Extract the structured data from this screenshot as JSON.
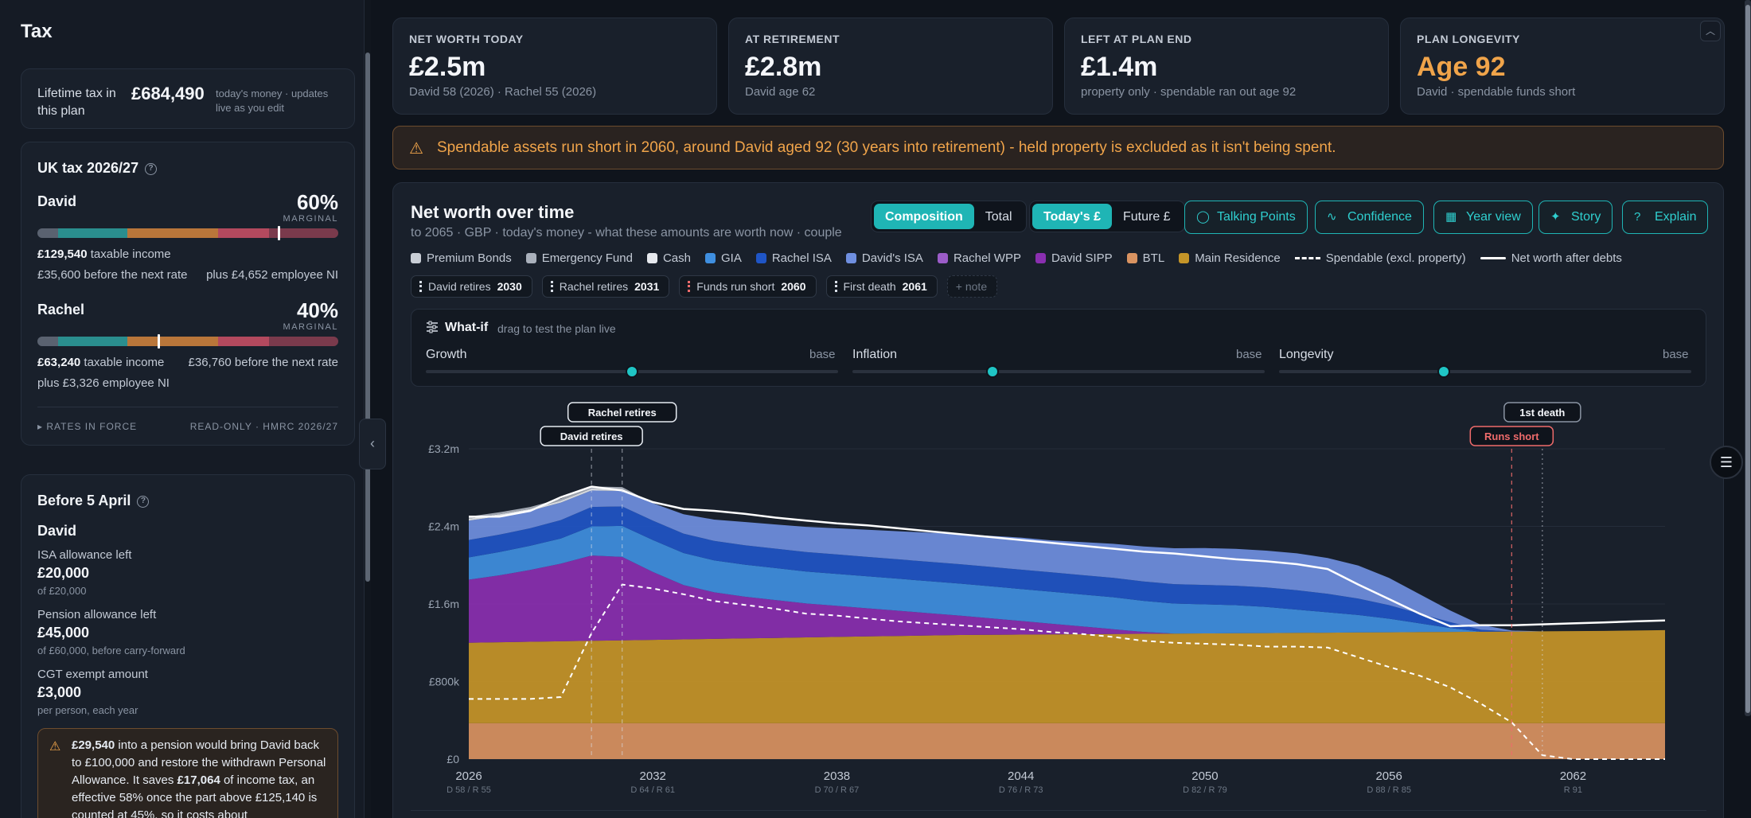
{
  "sidebar": {
    "title": "Tax",
    "lifetime": {
      "label": "Lifetime tax in this plan",
      "value": "£684,490",
      "note": "today's money · updates live as you edit"
    },
    "uk_tax": {
      "title": "UK tax 2026/27",
      "people": [
        {
          "name": "David",
          "marginal": "60%",
          "marginal_label": "MARGINAL",
          "marker_fraction": 0.8,
          "line1_value": "£129,540",
          "line1_text": " taxable income",
          "line2_left": "£35,600 before the next rate",
          "line2_right": "plus £4,652 employee NI"
        },
        {
          "name": "Rachel",
          "marginal": "40%",
          "marginal_label": "MARGINAL",
          "marker_fraction": 0.4,
          "line1_value": "£63,240",
          "line1_text": " taxable income",
          "line1_right": "£36,760 before the next rate",
          "line2_left": "plus £3,326 employee NI"
        }
      ],
      "footer_left": "▸ RATES IN FORCE",
      "footer_right": "READ-ONLY · HMRC 2026/27"
    },
    "before_april": {
      "title": "Before 5 April",
      "person": "David",
      "items": [
        {
          "label": "ISA allowance left",
          "value": "£20,000",
          "sub": "of £20,000"
        },
        {
          "label": "Pension allowance left",
          "value": "£45,000",
          "sub": "of £60,000, before carry-forward"
        },
        {
          "label": "CGT exempt amount",
          "value": "£3,000",
          "sub": "per person, each year"
        }
      ],
      "warning": {
        "b1": "£29,540",
        "t1": " into a pension would bring David back to £100,000 and restore the withdrawn Personal Allowance. It saves ",
        "b2": "£17,064",
        "t2": " of income tax, an effective 58% once the part above £125,140 is counted at 45%, so it costs about"
      }
    }
  },
  "kpis": [
    {
      "label": "NET WORTH TODAY",
      "value": "£2.5m",
      "sub": "David 58 (2026) · Rachel 55 (2026)"
    },
    {
      "label": "AT RETIREMENT",
      "value": "£2.8m",
      "sub": "David age 62"
    },
    {
      "label": "LEFT AT PLAN END",
      "value": "£1.4m",
      "sub": "property only · spendable ran out age 92"
    },
    {
      "label": "PLAN LONGEVITY",
      "value": "Age 92",
      "sub": "David · spendable funds short"
    }
  ],
  "alert": "Spendable assets run short in 2060, around David aged 92 (30 years into retirement) - held property is excluded as it isn't being spent.",
  "panel": {
    "title": "Net worth over time",
    "subtitle": "to 2065 · GBP · today's money - what these amounts are worth now · couple",
    "seg1": [
      "Composition",
      "Total"
    ],
    "seg2": [
      "Today's £",
      "Future £"
    ],
    "buttons": [
      "Talking Points",
      "Confidence",
      "Year view",
      "Story",
      "Explain"
    ],
    "legend": [
      {
        "label": "Premium Bonds",
        "color": "#c9ced6"
      },
      {
        "label": "Emergency Fund",
        "color": "#a9b0bb"
      },
      {
        "label": "Cash",
        "color": "#e6e9ee"
      },
      {
        "label": "GIA",
        "color": "#3f8fe0"
      },
      {
        "label": "Rachel ISA",
        "color": "#1f55c6"
      },
      {
        "label": "David's ISA",
        "color": "#6f8fe0"
      },
      {
        "label": "Rachel WPP",
        "color": "#9b5cc8"
      },
      {
        "label": "David SIPP",
        "color": "#8a2fb0"
      },
      {
        "label": "BTL",
        "color": "#d99361"
      },
      {
        "label": "Main Residence",
        "color": "#c59528"
      }
    ],
    "legend_lines": [
      "Spendable (excl. property)",
      "Net worth after debts"
    ],
    "chips": [
      {
        "label": "David retires",
        "year": "2030"
      },
      {
        "label": "Rachel retires",
        "year": "2031"
      },
      {
        "label": "Funds run short",
        "year": "2060"
      },
      {
        "label": "First death",
        "year": "2061"
      }
    ],
    "add_note": "+ note",
    "whatif": {
      "title": "What-if",
      "hint": "drag to test the plan live",
      "sliders": [
        {
          "label": "Growth",
          "base": "base",
          "value": 0.5
        },
        {
          "label": "Inflation",
          "base": "base",
          "value": 0.34
        },
        {
          "label": "Longevity",
          "base": "base",
          "value": 0.4
        }
      ]
    }
  },
  "chart_data": {
    "type": "area",
    "x": [
      2026,
      2027,
      2028,
      2029,
      2030,
      2031,
      2032,
      2033,
      2034,
      2035,
      2036,
      2037,
      2038,
      2039,
      2040,
      2041,
      2042,
      2043,
      2044,
      2045,
      2046,
      2047,
      2048,
      2049,
      2050,
      2051,
      2052,
      2053,
      2054,
      2055,
      2056,
      2057,
      2058,
      2059,
      2060,
      2061,
      2062,
      2063,
      2064,
      2065
    ],
    "x_ticks": [
      {
        "year": "2026",
        "sub": "D 58 / R 55"
      },
      {
        "year": "2032",
        "sub": "D 64 / R 61"
      },
      {
        "year": "2038",
        "sub": "D 70 / R 67"
      },
      {
        "year": "2044",
        "sub": "D 76 / R 73"
      },
      {
        "year": "2050",
        "sub": "D 82 / R 79"
      },
      {
        "year": "2056",
        "sub": "D 88 / R 85"
      },
      {
        "year": "2062",
        "sub": "R 91"
      }
    ],
    "y_ticks": [
      "£0",
      "£800k",
      "£1.6m",
      "£2.4m",
      "£3.2m"
    ],
    "ylim": [
      0,
      3200000
    ],
    "series": [
      {
        "name": "BTL",
        "color": "#d99361",
        "values": [
          370000,
          370000,
          370000,
          370000,
          370000,
          370000,
          370000,
          370000,
          370000,
          370000,
          370000,
          370000,
          370000,
          370000,
          370000,
          370000,
          370000,
          370000,
          370000,
          370000,
          370000,
          370000,
          370000,
          370000,
          370000,
          370000,
          370000,
          370000,
          370000,
          370000,
          370000,
          370000,
          370000,
          370000,
          370000,
          370000,
          370000,
          370000,
          370000,
          370000
        ]
      },
      {
        "name": "Main Residence",
        "color": "#c59528",
        "values": [
          830000,
          835000,
          840000,
          845000,
          850000,
          855000,
          860000,
          865000,
          870000,
          875000,
          880000,
          885000,
          890000,
          895000,
          900000,
          905000,
          910000,
          912000,
          914000,
          916000,
          918000,
          920000,
          922000,
          924000,
          926000,
          928000,
          930000,
          932000,
          934000,
          936000,
          938000,
          940000,
          942000,
          944000,
          946000,
          948000,
          950000,
          952000,
          956000,
          960000
        ]
      },
      {
        "name": "Rachel WPP",
        "color": "#9b5cc8",
        "values": [
          0,
          0,
          0,
          0,
          0,
          0,
          0,
          0,
          0,
          0,
          0,
          0,
          0,
          0,
          0,
          0,
          0,
          0,
          0,
          0,
          0,
          0,
          0,
          0,
          0,
          0,
          0,
          0,
          0,
          0,
          0,
          0,
          0,
          0,
          0,
          0,
          0,
          0,
          0,
          0
        ]
      },
      {
        "name": "David SIPP",
        "color": "#8a2fb0",
        "values": [
          650000,
          690000,
          740000,
          800000,
          880000,
          860000,
          700000,
          560000,
          480000,
          430000,
          390000,
          350000,
          320000,
          290000,
          260000,
          230000,
          200000,
          170000,
          140000,
          110000,
          80000,
          50000,
          20000,
          0,
          0,
          0,
          0,
          0,
          0,
          0,
          0,
          0,
          0,
          0,
          0,
          0,
          0,
          0,
          0,
          0
        ]
      },
      {
        "name": "GIA",
        "color": "#3f8fe0",
        "values": [
          230000,
          240000,
          250000,
          260000,
          300000,
          320000,
          330000,
          330000,
          330000,
          330000,
          330000,
          330000,
          330000,
          330000,
          330000,
          330000,
          330000,
          330000,
          330000,
          330000,
          330000,
          330000,
          320000,
          310000,
          300000,
          290000,
          270000,
          240000,
          210000,
          180000,
          140000,
          90000,
          40000,
          0,
          0,
          0,
          0,
          0,
          0,
          0
        ]
      },
      {
        "name": "Rachel ISA",
        "color": "#1f55c6",
        "values": [
          180000,
          180000,
          180000,
          190000,
          200000,
          200000,
          200000,
          200000,
          200000,
          200000,
          200000,
          200000,
          200000,
          200000,
          200000,
          200000,
          200000,
          200000,
          200000,
          200000,
          200000,
          200000,
          200000,
          200000,
          200000,
          200000,
          200000,
          200000,
          190000,
          170000,
          140000,
          100000,
          60000,
          20000,
          0,
          0,
          0,
          0,
          0,
          0
        ]
      },
      {
        "name": "David's ISA",
        "color": "#6f8fe0",
        "values": [
          200000,
          190000,
          180000,
          180000,
          170000,
          160000,
          180000,
          200000,
          220000,
          240000,
          250000,
          260000,
          270000,
          280000,
          290000,
          300000,
          310000,
          320000,
          330000,
          330000,
          340000,
          350000,
          360000,
          370000,
          380000,
          380000,
          380000,
          380000,
          370000,
          340000,
          280000,
          200000,
          120000,
          50000,
          10000,
          0,
          0,
          0,
          0,
          0
        ]
      },
      {
        "name": "Cash",
        "color": "#e6e9ee",
        "values": [
          20000,
          20000,
          20000,
          20000,
          20000,
          20000,
          0,
          0,
          0,
          0,
          0,
          0,
          0,
          0,
          0,
          0,
          0,
          0,
          0,
          0,
          0,
          0,
          0,
          0,
          0,
          0,
          0,
          0,
          0,
          0,
          0,
          0,
          0,
          0,
          0,
          0,
          0,
          0,
          0,
          0
        ]
      },
      {
        "name": "Emergency Fund",
        "color": "#a9b0bb",
        "values": [
          20000,
          20000,
          20000,
          20000,
          20000,
          20000,
          0,
          0,
          0,
          0,
          0,
          0,
          0,
          0,
          0,
          0,
          0,
          0,
          0,
          0,
          0,
          0,
          0,
          0,
          0,
          0,
          0,
          0,
          0,
          0,
          0,
          0,
          0,
          0,
          0,
          0,
          0,
          0,
          0,
          0
        ]
      },
      {
        "name": "Premium Bonds",
        "color": "#c9ced6",
        "values": [
          0,
          0,
          0,
          0,
          0,
          0,
          0,
          0,
          0,
          0,
          0,
          0,
          0,
          0,
          0,
          0,
          0,
          0,
          0,
          0,
          0,
          0,
          0,
          0,
          0,
          0,
          0,
          0,
          0,
          0,
          0,
          0,
          0,
          0,
          0,
          0,
          0,
          0,
          0,
          0
        ]
      }
    ],
    "spendable": [
      620000,
      620000,
      620000,
      640000,
      1300000,
      1800000,
      1760000,
      1700000,
      1630000,
      1590000,
      1550000,
      1500000,
      1480000,
      1450000,
      1420000,
      1400000,
      1380000,
      1360000,
      1340000,
      1310000,
      1290000,
      1260000,
      1220000,
      1200000,
      1190000,
      1180000,
      1160000,
      1160000,
      1150000,
      1050000,
      950000,
      860000,
      740000,
      570000,
      380000,
      40000,
      0,
      0,
      0,
      0
    ],
    "net_worth_line": [
      2500000,
      2500000,
      2560000,
      2700000,
      2810000,
      2770000,
      2650000,
      2580000,
      2560000,
      2530000,
      2490000,
      2460000,
      2430000,
      2410000,
      2380000,
      2350000,
      2320000,
      2290000,
      2260000,
      2230000,
      2200000,
      2170000,
      2140000,
      2120000,
      2090000,
      2060000,
      2040000,
      2010000,
      1960000,
      1800000,
      1650000,
      1500000,
      1370000,
      1380000,
      1380000,
      1390000,
      1400000,
      1410000,
      1420000,
      1430000
    ],
    "markers": [
      {
        "label": "David retires",
        "x": 2030,
        "style": "dashed"
      },
      {
        "label": "Rachel retires",
        "x": 2031,
        "style": "dashed"
      },
      {
        "label": "Runs short",
        "x": 2060,
        "style": "red"
      },
      {
        "label": "1st death",
        "x": 2061,
        "style": "dotted"
      }
    ]
  }
}
